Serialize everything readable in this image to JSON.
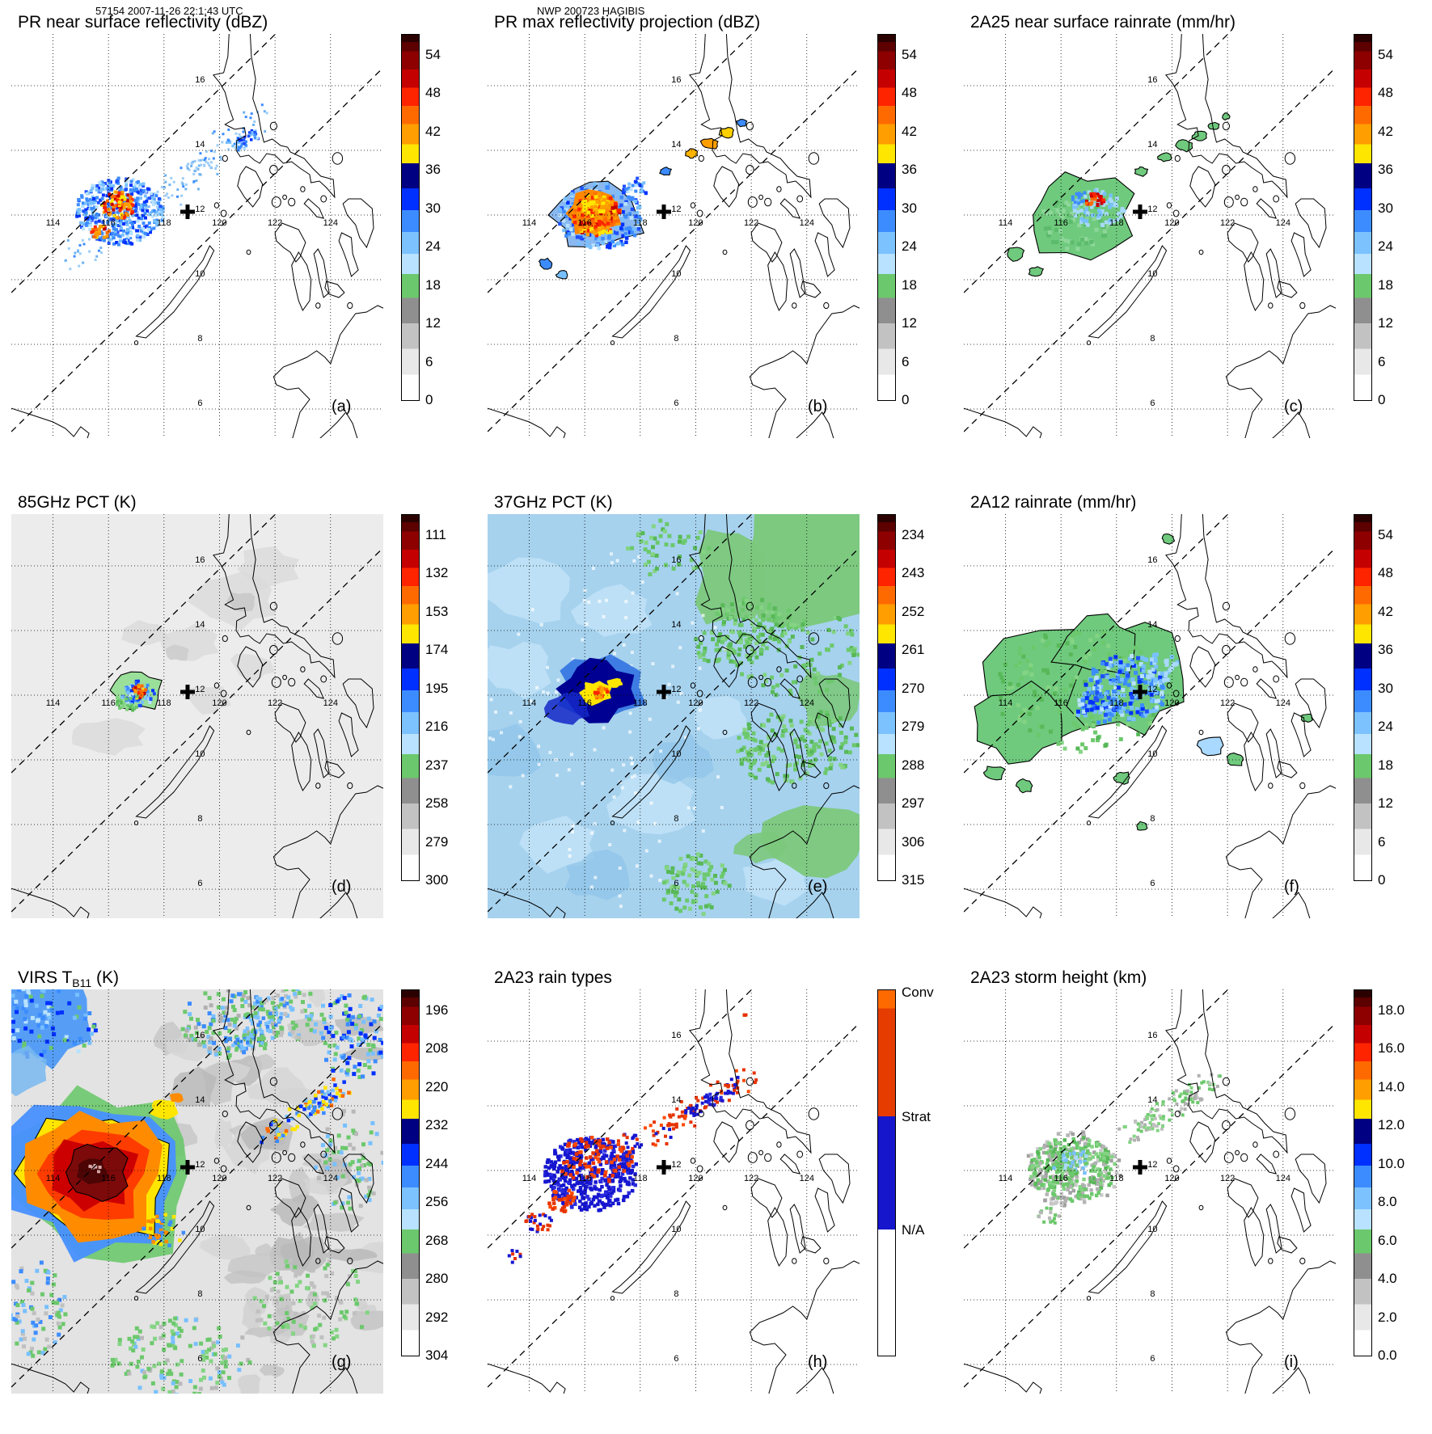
{
  "header": {
    "left": "57154 2007-11-26 22:1:43 UTC",
    "center": "NWP 200723 HAGIBIS"
  },
  "geo": {
    "lon_gridlines": [
      114,
      116,
      118,
      120,
      122,
      124
    ],
    "lat_gridlines": [
      16,
      14,
      12,
      10,
      8,
      6
    ],
    "storm_center_cross_lonlat": [
      118.85,
      12.1
    ],
    "swath_edge_dashed_lines": 2
  },
  "colorbar_palette": [
    [
      0.02,
      "#2a0000"
    ],
    [
      0.045,
      "#5c0000"
    ],
    [
      0.095,
      "#8e0000"
    ],
    [
      0.145,
      "#c40000"
    ],
    [
      0.195,
      "#ff2400"
    ],
    [
      0.245,
      "#ff6a00"
    ],
    [
      0.3,
      "#ff9e00"
    ],
    [
      0.352,
      "#ffe600"
    ],
    [
      0.42,
      "#000082"
    ],
    [
      0.48,
      "#0030ff"
    ],
    [
      0.54,
      "#3c8cff"
    ],
    [
      0.6,
      "#7cc2ff"
    ],
    [
      0.655,
      "#b8e2ff"
    ],
    [
      0.72,
      "#6cc86c"
    ],
    [
      0.79,
      "#8f8f8f"
    ],
    [
      0.86,
      "#c2c2c2"
    ],
    [
      0.93,
      "#e8e8e8"
    ],
    [
      1.0,
      "#ffffff"
    ]
  ],
  "raintype_palette": [
    [
      0.05,
      "#ff6a00"
    ],
    [
      0.345,
      "#e63c00"
    ],
    [
      0.655,
      "#1616cc"
    ],
    [
      1.0,
      "#ffffff"
    ]
  ],
  "chart_data": [
    {
      "panel": "(a)",
      "type": "heatmap",
      "title": "PR near surface reflectivity (dBZ)",
      "colorbar_ticks": [
        "54",
        "48",
        "42",
        "36",
        "30",
        "24",
        "18",
        "12",
        "6",
        "0"
      ]
    },
    {
      "panel": "(b)",
      "type": "heatmap",
      "title": "PR max reflectivity projection (dBZ)",
      "colorbar_ticks": [
        "54",
        "48",
        "42",
        "36",
        "30",
        "24",
        "18",
        "12",
        "6",
        "0"
      ]
    },
    {
      "panel": "(c)",
      "type": "heatmap",
      "title": "2A25 near surface rainrate (mm/hr)",
      "colorbar_ticks": [
        "54",
        "48",
        "42",
        "36",
        "30",
        "24",
        "18",
        "12",
        "6",
        "0"
      ]
    },
    {
      "panel": "(d)",
      "type": "heatmap",
      "title": "85GHz PCT (K)",
      "colorbar_ticks": [
        "111",
        "132",
        "153",
        "174",
        "195",
        "216",
        "237",
        "258",
        "279",
        "300"
      ]
    },
    {
      "panel": "(e)",
      "type": "heatmap",
      "title": "37GHz PCT (K)",
      "colorbar_ticks": [
        "234",
        "243",
        "252",
        "261",
        "270",
        "279",
        "288",
        "297",
        "306",
        "315"
      ]
    },
    {
      "panel": "(f)",
      "type": "heatmap",
      "title": "2A12 rainrate (mm/hr)",
      "colorbar_ticks": [
        "54",
        "48",
        "42",
        "36",
        "30",
        "24",
        "18",
        "12",
        "6",
        "0"
      ]
    },
    {
      "panel": "(g)",
      "type": "heatmap",
      "title": "VIRS TB11 (K)",
      "title_pre": "VIRS T",
      "title_sub": "B11",
      "title_post": " (K)",
      "colorbar_ticks": [
        "196",
        "208",
        "220",
        "232",
        "244",
        "256",
        "268",
        "280",
        "292",
        "304"
      ]
    },
    {
      "panel": "(h)",
      "type": "categorical-map",
      "title": "2A23 rain types",
      "colorbar_categories": [
        "Conv",
        "Strat",
        "N/A"
      ]
    },
    {
      "panel": "(i)",
      "type": "heatmap",
      "title": "2A23 storm height (km)",
      "colorbar_ticks": [
        "18.0",
        "16.0",
        "14.0",
        "12.0",
        "10.0",
        "8.0",
        "6.0",
        "4.0",
        "2.0",
        "0.0"
      ]
    }
  ]
}
